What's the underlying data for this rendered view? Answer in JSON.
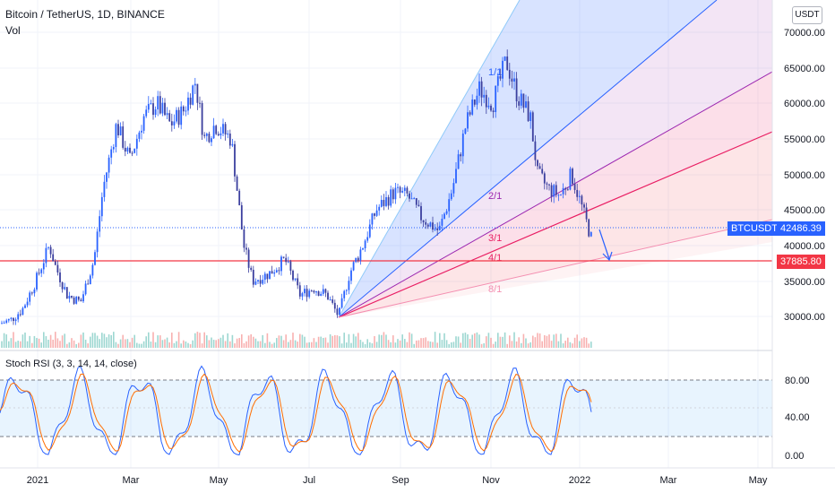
{
  "header": {
    "symbol_title": "Bitcoin / TetherUS, 1D, BINANCE",
    "volume_label": "Vol",
    "currency_button": "USDT"
  },
  "price_axis": {
    "ticks": [
      "70000.00",
      "65000.00",
      "60000.00",
      "55000.00",
      "50000.00",
      "45000.00",
      "40000.00",
      "35000.00",
      "30000.00"
    ]
  },
  "price_badges": {
    "last": {
      "symbol": "BTCUSDT",
      "value": "42486.39",
      "color": "#2962ff"
    },
    "line": {
      "value": "37885.80",
      "color": "#f23645"
    }
  },
  "fan_labels": [
    "1/1",
    "2/1",
    "3/1",
    "4/1",
    "8/1"
  ],
  "rsi": {
    "title": "Stoch RSI (3, 3, 14, 14, close)",
    "ticks": [
      "80.00",
      "40.00",
      "0.00"
    ]
  },
  "time_axis": {
    "labels": [
      "2021",
      "Mar",
      "May",
      "Jul",
      "Sep",
      "Nov",
      "2022",
      "Mar",
      "May"
    ]
  },
  "colors": {
    "up": "#2962ff",
    "down": "#3b3f9e",
    "k_line": "#2962ff",
    "d_line": "#ff6d00",
    "red_line": "#f23645"
  }
}
